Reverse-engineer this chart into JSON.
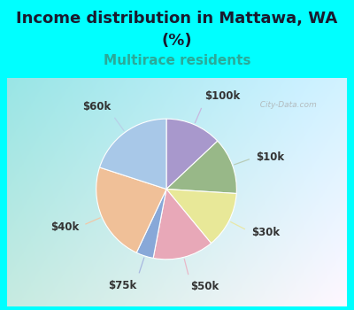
{
  "title_line1": "Income distribution in Mattawa, WA",
  "title_line2": "(%)",
  "subtitle": "Multirace residents",
  "title_fontsize": 13,
  "subtitle_fontsize": 11,
  "title_color": "#1a1a2e",
  "subtitle_color": "#2aaa99",
  "fig_bg": "#00ffff",
  "chart_bg_colors": [
    "#c8e8d8",
    "#e8f0f8",
    "#f0f4fc"
  ],
  "watermark": "  City-Data.com",
  "slices": [
    {
      "label": "$100k",
      "value": 13,
      "color": "#a898cc"
    },
    {
      "label": "$10k",
      "value": 13,
      "color": "#98b888"
    },
    {
      "label": "$30k",
      "value": 13,
      "color": "#e8e898"
    },
    {
      "label": "$50k",
      "value": 14,
      "color": "#e8a8b8"
    },
    {
      "label": "$75k",
      "value": 4,
      "color": "#88a8d8"
    },
    {
      "label": "$40k",
      "value": 23,
      "color": "#f0c098"
    },
    {
      "label": "$60k",
      "value": 20,
      "color": "#a8c8e8"
    }
  ],
  "label_fontsize": 8.5,
  "label_color": "#333333",
  "line_color_map": {
    "$100k": "#c8b8e0",
    "$10k": "#b8ccb8",
    "$30k": "#e8e8a8",
    "$50k": "#e8b8c8",
    "$75k": "#a8b8e0",
    "$40k": "#f0c8a8",
    "$60k": "#b8d0e8"
  }
}
